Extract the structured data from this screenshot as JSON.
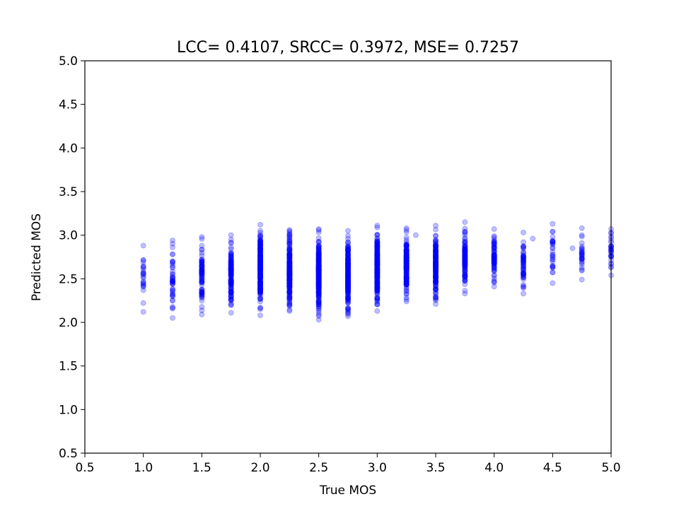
{
  "chart_data": {
    "type": "scatter",
    "title": "LCC= 0.4107, SRCC= 0.3972, MSE= 0.7257",
    "xlabel": "True MOS",
    "ylabel": "Predicted MOS",
    "xlim": [
      0.5,
      5.0
    ],
    "ylim": [
      0.5,
      5.0
    ],
    "xticks": [
      "0.5",
      "1.0",
      "1.5",
      "2.0",
      "2.5",
      "3.0",
      "3.5",
      "4.0",
      "4.5",
      "5.0"
    ],
    "yticks": [
      "0.5",
      "1.0",
      "1.5",
      "2.0",
      "2.5",
      "3.0",
      "3.5",
      "4.0",
      "4.5",
      "5.0"
    ],
    "grid": false,
    "legend": "none",
    "marker_color": "#0000ff",
    "marker_alpha": 0.25,
    "series": [
      {
        "clusters": [
          {
            "x": 1.0,
            "n": 25,
            "y_min": 2.12,
            "y_max": 2.88
          },
          {
            "x": 1.25,
            "n": 45,
            "y_min": 2.05,
            "y_max": 2.94
          },
          {
            "x": 1.5,
            "n": 80,
            "y_min": 2.09,
            "y_max": 2.98
          },
          {
            "x": 1.75,
            "n": 140,
            "y_min": 2.11,
            "y_max": 3.0
          },
          {
            "x": 2.0,
            "n": 230,
            "y_min": 2.08,
            "y_max": 3.12
          },
          {
            "x": 2.25,
            "n": 220,
            "y_min": 2.13,
            "y_max": 3.06
          },
          {
            "x": 2.5,
            "n": 260,
            "y_min": 2.03,
            "y_max": 3.07
          },
          {
            "x": 2.75,
            "n": 240,
            "y_min": 2.07,
            "y_max": 3.05
          },
          {
            "x": 3.0,
            "n": 220,
            "y_min": 2.13,
            "y_max": 3.11
          },
          {
            "x": 3.25,
            "n": 180,
            "y_min": 2.24,
            "y_max": 3.08
          },
          {
            "x": 3.5,
            "n": 160,
            "y_min": 2.21,
            "y_max": 3.11
          },
          {
            "x": 3.75,
            "n": 120,
            "y_min": 2.33,
            "y_max": 3.15
          },
          {
            "x": 4.0,
            "n": 80,
            "y_min": 2.41,
            "y_max": 3.07
          },
          {
            "x": 4.25,
            "n": 55,
            "y_min": 2.33,
            "y_max": 3.03
          },
          {
            "x": 4.5,
            "n": 30,
            "y_min": 2.45,
            "y_max": 3.13
          },
          {
            "x": 4.75,
            "n": 30,
            "y_min": 2.49,
            "y_max": 3.08
          },
          {
            "x": 5.0,
            "n": 30,
            "y_min": 2.54,
            "y_max": 3.07
          }
        ],
        "points": [
          {
            "x": 3.33,
            "y": 3.0
          },
          {
            "x": 4.33,
            "y": 2.96
          },
          {
            "x": 4.67,
            "y": 2.85
          }
        ]
      }
    ]
  }
}
